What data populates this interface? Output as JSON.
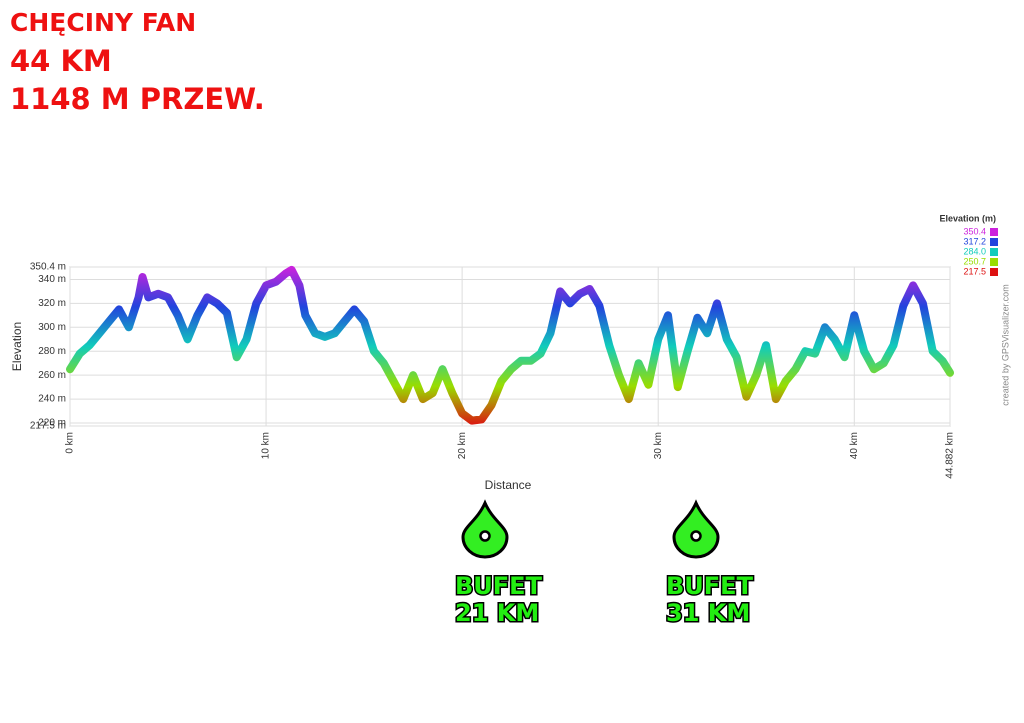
{
  "header": {
    "title": "CHĘCINY FAN",
    "distance": "44 KM",
    "climb": "1148 M PRZEW."
  },
  "chart_data": {
    "type": "line",
    "x_label": "Distance",
    "y_label": "Elevation",
    "credit": "created by GPSVisualizer.com",
    "xlim": [
      0,
      44.882
    ],
    "ylim": [
      217.5,
      350.4
    ],
    "xticks": [
      {
        "value": 0,
        "label": "0 km"
      },
      {
        "value": 10,
        "label": "10 km"
      },
      {
        "value": 20,
        "label": "20 km"
      },
      {
        "value": 30,
        "label": "30 km"
      },
      {
        "value": 40,
        "label": "40 km"
      },
      {
        "value": 44.882,
        "label": "44.882 km"
      }
    ],
    "yticks": [
      {
        "value": 217.5,
        "label": "217.5 m"
      },
      {
        "value": 220,
        "label": "220 m"
      },
      {
        "value": 240,
        "label": "240 m"
      },
      {
        "value": 260,
        "label": "260 m"
      },
      {
        "value": 280,
        "label": "280 m"
      },
      {
        "value": 300,
        "label": "300 m"
      },
      {
        "value": 320,
        "label": "320 m"
      },
      {
        "value": 340,
        "label": "340 m"
      },
      {
        "value": 350.4,
        "label": "350.4 m"
      }
    ],
    "grid": true,
    "legend": {
      "title": "Elevation (m)",
      "items": [
        {
          "value": 350.4,
          "label": "350.4",
          "color": "#cc22dd"
        },
        {
          "value": 317.2,
          "label": "317.2",
          "color": "#2244dd"
        },
        {
          "value": 284.0,
          "label": "284.0",
          "color": "#11ccbb"
        },
        {
          "value": 250.7,
          "label": "250.7",
          "color": "#99dd00"
        },
        {
          "value": 217.5,
          "label": "217.5",
          "color": "#dd1111"
        }
      ]
    },
    "x": [
      0,
      0.5,
      1,
      1.5,
      2,
      2.5,
      3,
      3.5,
      3.7,
      4,
      4.5,
      5,
      5.5,
      6,
      6.5,
      7,
      7.5,
      8,
      8.5,
      9,
      9.5,
      10,
      10.5,
      11,
      11.3,
      11.7,
      12,
      12.5,
      13,
      13.5,
      14,
      14.5,
      15,
      15.5,
      16,
      16.5,
      17,
      17.5,
      18,
      18.5,
      19,
      19.5,
      20,
      20.5,
      21,
      21.5,
      22,
      22.5,
      23,
      23.5,
      24,
      24.5,
      25,
      25.5,
      26,
      26.5,
      27,
      27.5,
      28,
      28.5,
      29,
      29.5,
      30,
      30.5,
      31,
      31.5,
      32,
      32.5,
      33,
      33.5,
      34,
      34.5,
      35,
      35.5,
      36,
      36.5,
      37,
      37.5,
      38,
      38.5,
      39,
      39.5,
      40,
      40.5,
      41,
      41.5,
      42,
      42.5,
      43,
      43.5,
      44,
      44.5,
      44.882
    ],
    "values": [
      265,
      278,
      285,
      295,
      305,
      315,
      300,
      325,
      342,
      325,
      328,
      325,
      310,
      290,
      310,
      325,
      320,
      312,
      275,
      290,
      320,
      335,
      338,
      345,
      348,
      335,
      310,
      295,
      292,
      295,
      305,
      315,
      305,
      280,
      270,
      255,
      240,
      260,
      240,
      245,
      265,
      245,
      228,
      222,
      223,
      235,
      255,
      265,
      272,
      272,
      278,
      295,
      330,
      320,
      328,
      332,
      318,
      285,
      260,
      240,
      270,
      252,
      290,
      310,
      250,
      280,
      308,
      295,
      320,
      290,
      275,
      242,
      260,
      285,
      240,
      255,
      265,
      280,
      278,
      300,
      290,
      275,
      310,
      280,
      265,
      270,
      285,
      318,
      335,
      320,
      280,
      272,
      262
    ],
    "annotations": [
      {
        "title": "BUFET",
        "text": "21 KM"
      },
      {
        "title": "BUFET",
        "text": "31 KM"
      }
    ]
  }
}
